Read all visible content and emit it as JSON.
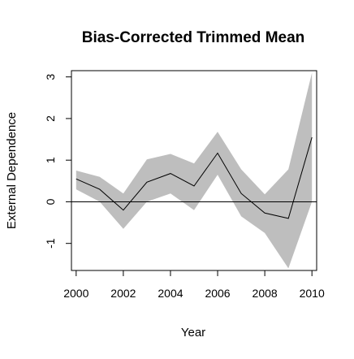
{
  "chart_data": {
    "type": "line",
    "title": "Bias-Corrected Trimmed Mean",
    "xlabel": "Year",
    "ylabel": "External Dependence",
    "xlim": [
      1999.8,
      2010.2
    ],
    "ylim": [
      -1.65,
      3.15
    ],
    "x_ticks": [
      "2000",
      "2002",
      "2004",
      "2006",
      "2008",
      "2010"
    ],
    "y_ticks": [
      "-1",
      "0",
      "1",
      "2",
      "3"
    ],
    "x": [
      2000,
      2001,
      2002,
      2003,
      2004,
      2005,
      2006,
      2007,
      2008,
      2009,
      2010
    ],
    "series": [
      {
        "values": [
          0.55,
          0.3,
          -0.2,
          0.47,
          0.68,
          0.38,
          1.17,
          0.2,
          -0.27,
          -0.4,
          1.55
        ],
        "lower": [
          0.3,
          0.0,
          -0.65,
          0.0,
          0.2,
          -0.2,
          0.65,
          -0.35,
          -0.75,
          -1.6,
          0.0
        ],
        "upper": [
          0.75,
          0.6,
          0.2,
          1.02,
          1.15,
          0.92,
          1.68,
          0.78,
          0.18,
          0.78,
          3.1
        ]
      }
    ],
    "reference_line_y": 0,
    "band_color": "#bebebe",
    "line_color": "#000000",
    "grid": false,
    "legend": "none"
  }
}
